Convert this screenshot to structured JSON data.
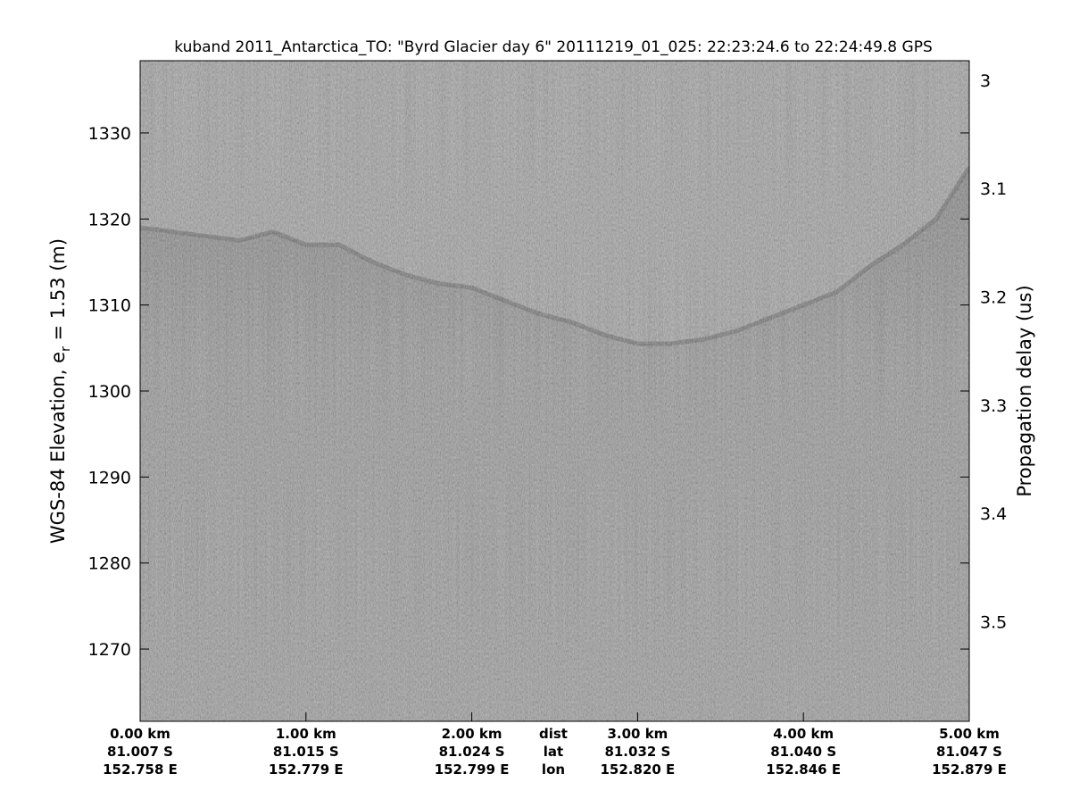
{
  "chart_data": {
    "type": "echogram",
    "title": "kuband 2011_Antarctica_TO: \"Byrd Glacier day 6\"  20111219_01_025: 22:23:24.6 to 22:24:49.8 GPS",
    "y_label": {
      "main": "WGS-84 Elevation, e",
      "sub": "r",
      "rest": " = 1.53 (m)"
    },
    "y2_label": "Propagation delay (us)",
    "xlim": [
      0,
      5
    ],
    "xticks": [
      {
        "value": 0,
        "label": "0.00 km"
      },
      {
        "value": 1,
        "label": "1.00 km"
      },
      {
        "value": 2,
        "label": "2.00 km"
      },
      {
        "value": 3,
        "label": "3.00 km"
      },
      {
        "value": 4,
        "label": "4.00 km"
      },
      {
        "value": 5,
        "label": "5.00 km"
      }
    ],
    "lat_labels": [
      "81.007 S",
      "81.015 S",
      "81.024 S",
      "81.032 S",
      "81.040 S",
      "81.047 S"
    ],
    "lon_labels": [
      "152.758 E",
      "152.779 E",
      "152.799 E",
      "152.820 E",
      "152.846 E",
      "152.879 E"
    ],
    "row_labels": [
      "dist",
      "lat",
      "lon"
    ],
    "ylim": [
      1261.6,
      1338.4
    ],
    "yticks": [
      1270,
      1280,
      1290,
      1300,
      1310,
      1320,
      1330
    ],
    "y2lim": [
      3.592,
      2.982
    ],
    "y2ticks": [
      3,
      3.1,
      3.2,
      3.3,
      3.4,
      3.5
    ],
    "surface": {
      "color": "#2a2a2a",
      "x": [
        0,
        0.2,
        0.4,
        0.6,
        0.8,
        1.0,
        1.2,
        1.4,
        1.6,
        1.8,
        2.0,
        2.2,
        2.4,
        2.6,
        2.8,
        3.0,
        3.2,
        3.4,
        3.6,
        3.8,
        4.0,
        4.2,
        4.4,
        4.6,
        4.8,
        5.0
      ],
      "values": [
        1319,
        1318.5,
        1318,
        1317.5,
        1318.5,
        1317,
        1317,
        1315,
        1313.5,
        1312.5,
        1312,
        1310.5,
        1309,
        1308,
        1306.5,
        1305.5,
        1305.5,
        1306,
        1307,
        1308.5,
        1310,
        1311.5,
        1314.5,
        1317,
        1320,
        1326
      ]
    }
  }
}
